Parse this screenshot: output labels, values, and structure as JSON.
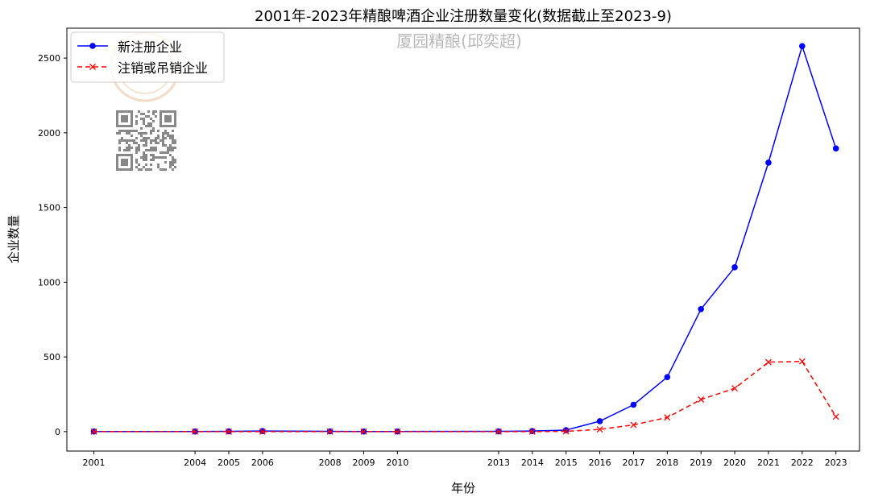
{
  "chart_data": {
    "type": "line",
    "title": "2001年-2023年精酿啤酒企业注册数量变化(数据截止至2023-9)",
    "xlabel": "年份",
    "ylabel": "企业数量",
    "x": [
      2001,
      2004,
      2005,
      2006,
      2008,
      2009,
      2010,
      2013,
      2014,
      2015,
      2016,
      2017,
      2018,
      2019,
      2020,
      2021,
      2022,
      2023
    ],
    "xlim": [
      2000.2,
      2023.7
    ],
    "ylim": [
      -130,
      2700
    ],
    "yticks": [
      0,
      500,
      1000,
      1500,
      2000,
      2500
    ],
    "series": [
      {
        "name": "新注册企业",
        "color": "#0000ff",
        "linestyle": "solid",
        "marker": "circle",
        "values": [
          1,
          1,
          2,
          4,
          2,
          1,
          1,
          2,
          4,
          10,
          70,
          180,
          365,
          820,
          1100,
          1800,
          2580,
          1895
        ]
      },
      {
        "name": "注销或吊销企业",
        "color": "#ff0000",
        "linestyle": "dashed",
        "marker": "x",
        "values": [
          0,
          0,
          0,
          0,
          0,
          0,
          0,
          0,
          0,
          2,
          15,
          45,
          95,
          215,
          290,
          465,
          470,
          100
        ]
      }
    ],
    "legend_position": "top-left",
    "grid": false
  },
  "watermark": {
    "text": "厦园精酿(邱奕超)"
  }
}
